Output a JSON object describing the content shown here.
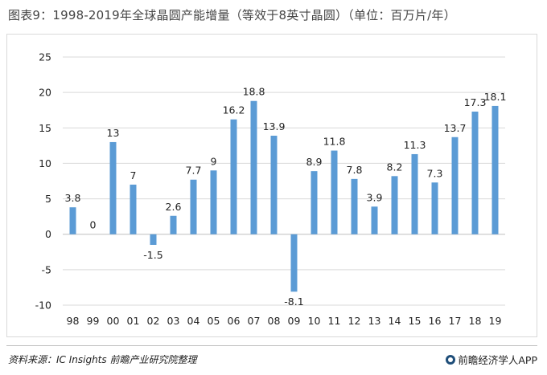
{
  "title": "图表9：1998-2019年全球晶圆产能增量（等效于8英寸晶圆）（单位：百万片/年）",
  "source": "资料来源：IC Insights 前瞻产业研究院整理",
  "brand": "前瞻经济学人APP",
  "colors": {
    "bar": "#5b9bd5",
    "grid": "#d9d9d9",
    "axis": "#bfbfbf"
  },
  "chart_data": {
    "type": "bar",
    "title": "",
    "xlabel": "",
    "ylabel": "",
    "ylim": [
      -10,
      25
    ],
    "yticks": [
      25,
      20,
      15,
      10,
      5,
      0,
      -5,
      -10
    ],
    "grid": true,
    "legend": "none",
    "categories": [
      "98",
      "99",
      "00",
      "01",
      "02",
      "03",
      "04",
      "05",
      "06",
      "07",
      "08",
      "09",
      "10",
      "11",
      "12",
      "13",
      "14",
      "15",
      "16",
      "17",
      "18",
      "19"
    ],
    "values": [
      3.8,
      0,
      13,
      7,
      -1.5,
      2.6,
      7.7,
      9,
      16.2,
      18.8,
      13.9,
      -8.1,
      8.9,
      11.8,
      7.8,
      3.9,
      8.2,
      11.3,
      7.3,
      13.7,
      17.3,
      18.1
    ],
    "value_labels": [
      "3.8",
      "0",
      "13",
      "7",
      "-1.5",
      "2.6",
      "7.7",
      "9",
      "16.2",
      "18.8",
      "13.9",
      "-8.1",
      "8.9",
      "11.8",
      "7.8",
      "3.9",
      "8.2",
      "11.3",
      "7.3",
      "13.7",
      "17.3",
      "18.1"
    ]
  }
}
